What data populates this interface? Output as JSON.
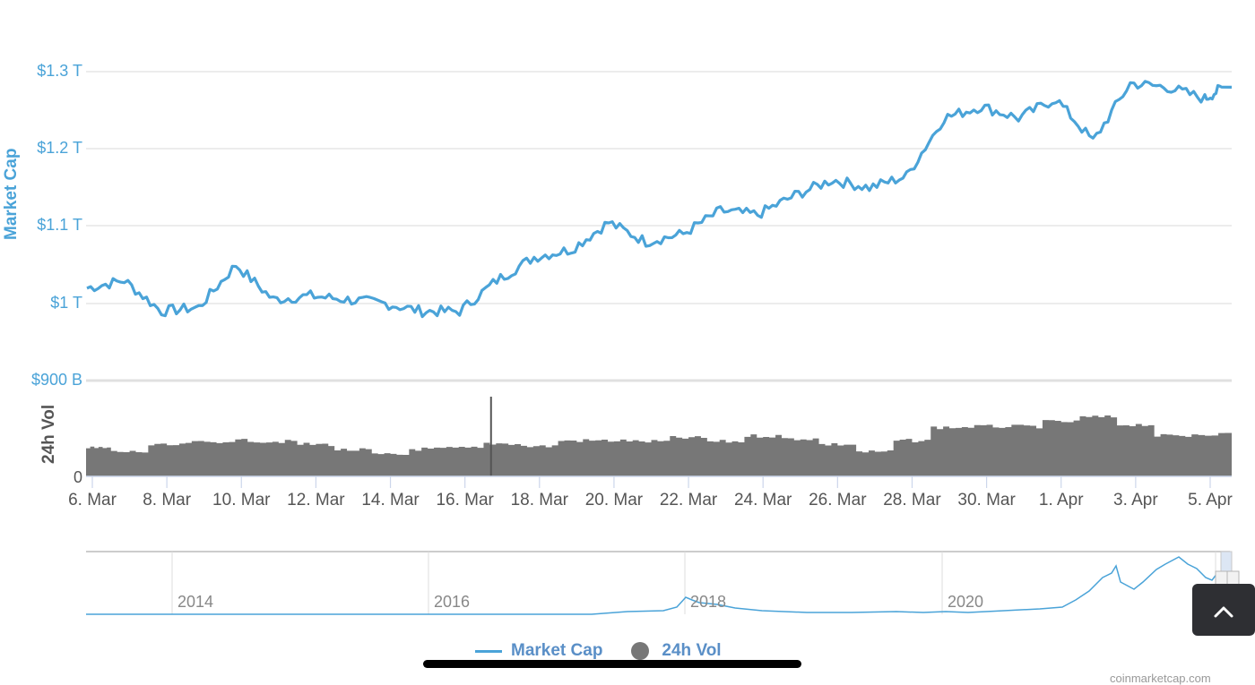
{
  "chart_data": [
    {
      "type": "line",
      "title": "",
      "ylabel": "Market Cap",
      "xlabel": "",
      "ylim": [
        900,
        1300
      ],
      "yunit": "B USD",
      "grid": true,
      "legend_position": "bottom",
      "x_tick_labels": [
        "6. Mar",
        "8. Mar",
        "10. Mar",
        "12. Mar",
        "14. Mar",
        "16. Mar",
        "18. Mar",
        "20. Mar",
        "22. Mar",
        "24. Mar",
        "26. Mar",
        "28. Mar",
        "30. Mar",
        "1. Apr",
        "3. Apr",
        "5. Apr"
      ],
      "y_tick_labels": [
        "$900 B",
        "$1 T",
        "$1.1 T",
        "$1.2 T",
        "$1.3 T"
      ],
      "series": [
        {
          "name": "Market Cap",
          "color": "#4aa3d8",
          "x": [
            "6 Mar",
            "7 Mar",
            "8 Mar",
            "9 Mar",
            "10 Mar",
            "11 Mar",
            "12 Mar",
            "13 Mar",
            "14 Mar",
            "15 Mar",
            "16 Mar",
            "17 Mar",
            "18 Mar",
            "19 Mar",
            "20 Mar",
            "21 Mar",
            "22 Mar",
            "23 Mar",
            "24 Mar",
            "25 Mar",
            "26 Mar",
            "27 Mar",
            "28 Mar",
            "29 Mar",
            "30 Mar",
            "31 Mar",
            "1 Apr",
            "2 Apr",
            "3 Apr",
            "4 Apr",
            "5 Apr",
            "5.5 Apr"
          ],
          "values": [
            1020,
            1030,
            990,
            995,
            1050,
            1005,
            1010,
            1005,
            1000,
            990,
            990,
            1030,
            1060,
            1070,
            1105,
            1080,
            1090,
            1120,
            1115,
            1140,
            1160,
            1150,
            1165,
            1240,
            1255,
            1240,
            1265,
            1210,
            1285,
            1280,
            1265,
            1280
          ]
        }
      ]
    },
    {
      "type": "bar",
      "title": "",
      "ylabel": "24h Vol",
      "ylim": [
        0,
        null
      ],
      "y_tick_labels": [
        "0"
      ],
      "series": [
        {
          "name": "24h Vol",
          "color": "#777777",
          "x": [
            "6 Mar",
            "7 Mar",
            "8 Mar",
            "9 Mar",
            "10 Mar",
            "11 Mar",
            "12 Mar",
            "13 Mar",
            "14 Mar",
            "15 Mar",
            "16 Mar",
            "16.7 Mar",
            "17 Mar",
            "18 Mar",
            "19 Mar",
            "20 Mar",
            "21 Mar",
            "22 Mar",
            "23 Mar",
            "24 Mar",
            "25 Mar",
            "26 Mar",
            "27 Mar",
            "28 Mar",
            "29 Mar",
            "30 Mar",
            "31 Mar",
            "1 Apr",
            "2 Apr",
            "3 Apr",
            "4 Apr",
            "5 Apr"
          ],
          "relative_values": [
            30,
            26,
            33,
            36,
            38,
            37,
            34,
            28,
            23,
            29,
            30,
            88,
            35,
            32,
            38,
            38,
            37,
            41,
            37,
            43,
            40,
            34,
            26,
            38,
            52,
            53,
            53,
            58,
            63,
            55,
            43,
            45
          ]
        }
      ]
    },
    {
      "type": "area",
      "title": "navigator",
      "x_tick_labels": [
        "2014",
        "2016",
        "2018",
        "2020"
      ],
      "series": [
        {
          "name": "Market Cap (all time)",
          "color": "#4aa3d8"
        }
      ]
    }
  ],
  "axes": {
    "mc_title": "Market Cap",
    "vol_title": "24h Vol",
    "mc_ticks": [
      {
        "label": "$1.3 T",
        "y": 80
      },
      {
        "label": "$1.2 T",
        "y": 166
      },
      {
        "label": "$1.1 T",
        "y": 252
      },
      {
        "label": "$1 T",
        "y": 339
      },
      {
        "label": "$900 B",
        "y": 425
      }
    ],
    "vol_zero": "0",
    "x_ticks": [
      "6. Mar",
      "8. Mar",
      "10. Mar",
      "12. Mar",
      "14. Mar",
      "16. Mar",
      "18. Mar",
      "20. Mar",
      "22. Mar",
      "24. Mar",
      "26. Mar",
      "28. Mar",
      "30. Mar",
      "1. Apr",
      "3. Apr",
      "5. Apr"
    ]
  },
  "navigator": {
    "years": [
      "2014",
      "2016",
      "2018",
      "2020"
    ]
  },
  "legend": {
    "market_cap": "Market Cap",
    "vol": "24h Vol"
  },
  "credit": "coinmarketcap.com",
  "colors": {
    "market_cap": "#4aa3d8",
    "volume": "#777777",
    "grid": "#e0e0e0"
  }
}
